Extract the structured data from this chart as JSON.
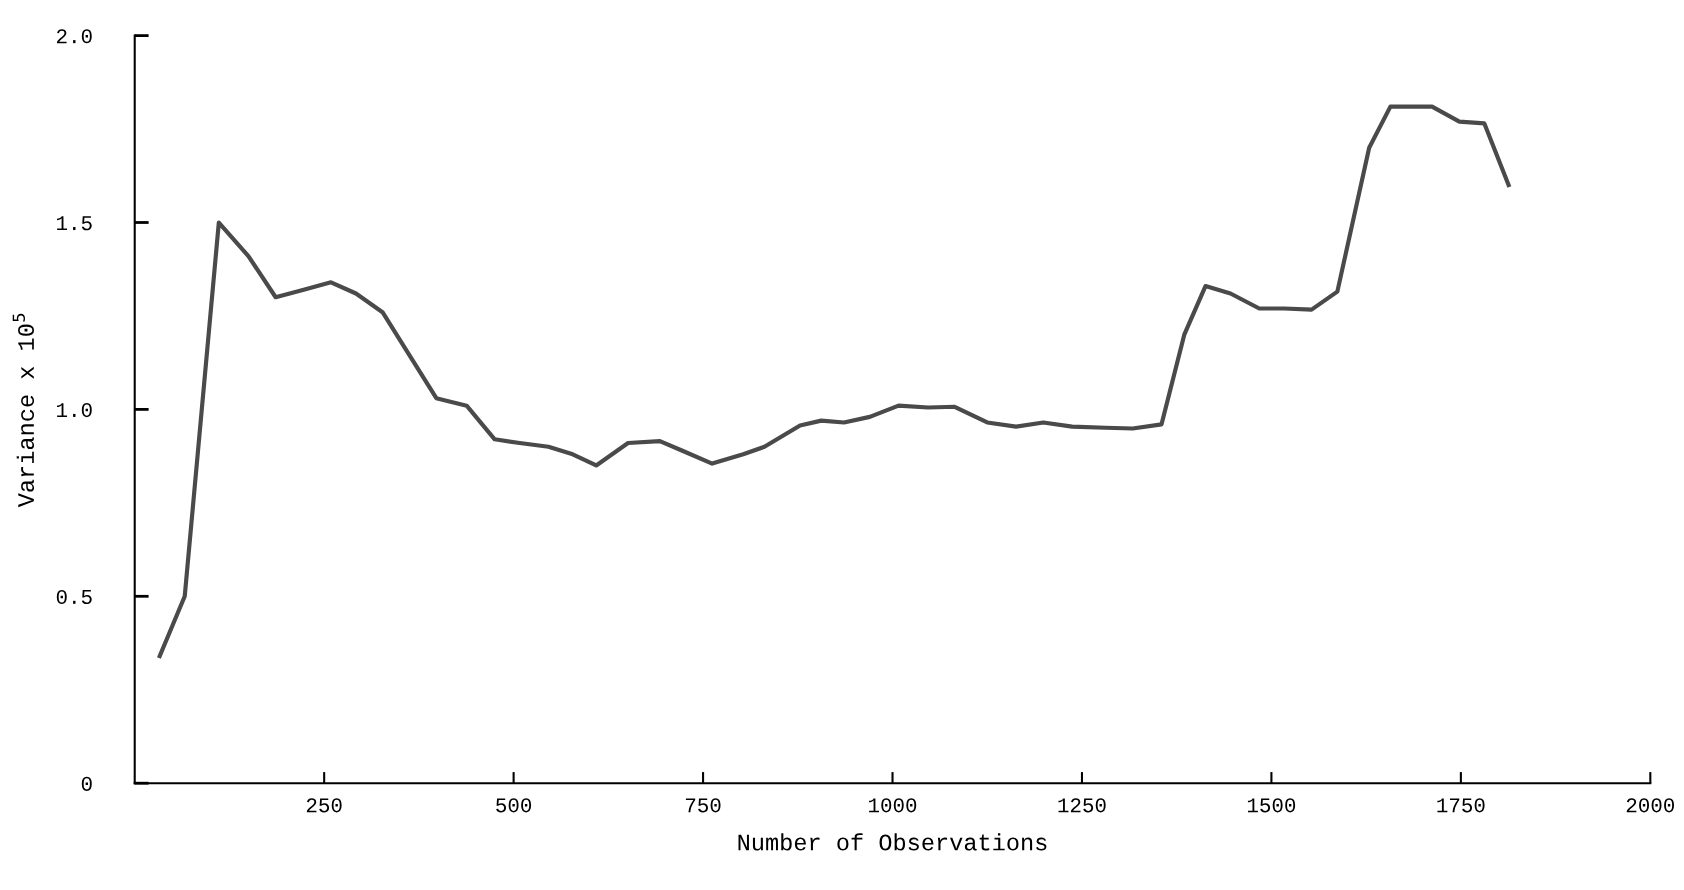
{
  "chart_data": {
    "type": "line",
    "xlabel": "Number of Observations",
    "ylabel": "Variance x 10$^{5}$",
    "xlim": [
      0,
      2000
    ],
    "xticks": [
      250,
      500,
      750,
      1000,
      1250,
      1500,
      1750,
      2000
    ],
    "ylim": [
      0,
      2.0
    ],
    "yticks": [
      {
        "value": 0,
        "label": "0"
      },
      0.5,
      {
        "value": 1,
        "label": "1.0"
      },
      1.5,
      {
        "value": 2,
        "label": "2.0"
      }
    ],
    "grid": false,
    "marker": "none",
    "line_style": "solid",
    "series": [
      {
        "color": "#4a4a4a",
        "x": [
          33,
          66,
          111,
          150,
          186,
          223,
          259,
          292,
          327,
          361,
          398,
          438,
          475,
          508,
          546,
          578,
          609,
          651,
          693,
          722,
          762,
          803,
          831,
          878,
          906,
          936,
          970,
          1008,
          1047,
          1082,
          1125,
          1163,
          1199,
          1237,
          1281,
          1317,
          1355,
          1385,
          1413,
          1446,
          1484,
          1517,
          1553,
          1587,
          1629,
          1657,
          1712,
          1748,
          1781,
          1813
        ],
        "values": [
          0.34,
          0.5,
          1.5,
          1.41,
          1.3,
          1.32,
          1.34,
          1.31,
          1.26,
          1.15,
          1.03,
          1.01,
          0.92,
          0.91,
          0.9,
          0.88,
          0.85,
          0.91,
          0.915,
          0.89,
          0.855,
          0.88,
          0.9,
          0.957,
          0.97,
          0.965,
          0.98,
          1.01,
          1.005,
          1.007,
          0.965,
          0.954,
          0.965,
          0.954,
          0.951,
          0.949,
          0.96,
          1.2,
          1.33,
          1.31,
          1.27,
          1.27,
          1.267,
          1.315,
          1.7,
          1.81,
          1.81,
          1.77,
          1.765,
          1.6
        ]
      }
    ]
  }
}
